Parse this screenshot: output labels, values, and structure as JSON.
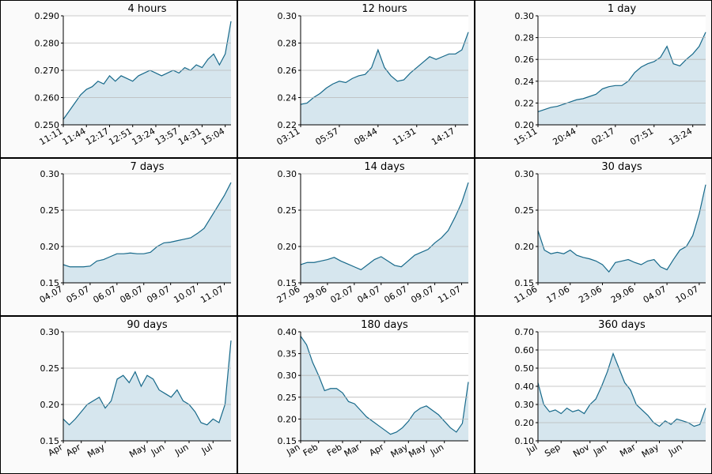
{
  "chart_data": [
    {
      "type": "area",
      "title": "4 hours",
      "color": "#17698a",
      "fill_color": "#d6e6ee",
      "grid": true,
      "categories": [
        "11:11",
        null,
        null,
        null,
        "11:44",
        null,
        null,
        null,
        "12:17",
        null,
        null,
        null,
        "12:51",
        null,
        null,
        null,
        "13:24",
        null,
        null,
        null,
        "13:57",
        null,
        null,
        null,
        "14:31",
        null,
        null,
        null,
        "15:04",
        null
      ],
      "values": [
        0.252,
        0.255,
        0.258,
        0.261,
        0.263,
        0.264,
        0.266,
        0.265,
        0.268,
        0.266,
        0.268,
        0.267,
        0.266,
        0.268,
        0.269,
        0.27,
        0.269,
        0.268,
        0.269,
        0.27,
        0.269,
        0.271,
        0.27,
        0.272,
        0.271,
        0.274,
        0.276,
        0.272,
        0.276,
        0.288
      ],
      "ylim": [
        0.25,
        0.29
      ],
      "yticks": [
        {
          "value": 0.25,
          "label": "0.250"
        },
        {
          "value": 0.26,
          "label": "0.260"
        },
        {
          "value": 0.27,
          "label": "0.270"
        },
        {
          "value": 0.28,
          "label": "0.280"
        },
        {
          "value": 0.29,
          "label": "0.290"
        }
      ]
    },
    {
      "type": "area",
      "title": "12 hours",
      "color": "#17698a",
      "fill_color": "#d6e6ee",
      "grid": true,
      "categories": [
        "03:11",
        null,
        null,
        null,
        null,
        null,
        "05:57",
        null,
        null,
        null,
        null,
        null,
        "08:44",
        null,
        null,
        null,
        null,
        null,
        "11:31",
        null,
        null,
        null,
        null,
        null,
        "14:17",
        null,
        null
      ],
      "values": [
        0.235,
        0.236,
        0.24,
        0.243,
        0.247,
        0.25,
        0.252,
        0.251,
        0.254,
        0.256,
        0.257,
        0.262,
        0.275,
        0.262,
        0.256,
        0.252,
        0.253,
        0.258,
        0.262,
        0.266,
        0.27,
        0.268,
        0.27,
        0.272,
        0.272,
        0.275,
        0.288
      ],
      "ylim": [
        0.22,
        0.3
      ],
      "yticks": [
        0.22,
        0.24,
        0.26,
        0.28,
        {
          "value": 0.3,
          "label": "0.30"
        }
      ]
    },
    {
      "type": "area",
      "title": "1 day",
      "color": "#17698a",
      "fill_color": "#d6e6ee",
      "grid": true,
      "categories": [
        "15:11",
        null,
        null,
        null,
        null,
        null,
        "20:44",
        null,
        null,
        null,
        null,
        null,
        "02:17",
        null,
        null,
        null,
        null,
        null,
        "07:51",
        null,
        null,
        null,
        null,
        null,
        "13:24",
        null,
        null
      ],
      "values": [
        0.212,
        0.214,
        0.216,
        0.217,
        0.219,
        0.221,
        0.223,
        0.224,
        0.226,
        0.228,
        0.233,
        0.235,
        0.236,
        0.236,
        0.24,
        0.248,
        0.253,
        0.256,
        0.258,
        0.262,
        0.272,
        0.256,
        0.254,
        0.26,
        0.265,
        0.272,
        0.285
      ],
      "ylim": [
        0.2,
        0.3
      ],
      "yticks": [
        {
          "value": 0.2,
          "label": "0.20"
        },
        0.22,
        0.24,
        0.26,
        0.28,
        {
          "value": 0.3,
          "label": "0.30"
        }
      ]
    },
    {
      "type": "area",
      "title": "7 days",
      "color": "#17698a",
      "fill_color": "#d6e6ee",
      "grid": true,
      "categories": [
        "04.07",
        null,
        null,
        null,
        "05.07",
        null,
        null,
        null,
        "06.07",
        null,
        null,
        null,
        "08.07",
        null,
        null,
        null,
        "09.07",
        null,
        null,
        null,
        "10.07",
        null,
        null,
        null,
        "11.07",
        null
      ],
      "values": [
        0.175,
        0.172,
        0.172,
        0.172,
        0.173,
        0.18,
        0.182,
        0.186,
        0.19,
        0.19,
        0.191,
        0.19,
        0.19,
        0.192,
        0.2,
        0.205,
        0.206,
        0.208,
        0.21,
        0.212,
        0.218,
        0.225,
        0.24,
        0.255,
        0.27,
        0.288
      ],
      "ylim": [
        0.15,
        0.3
      ],
      "yticks": [
        0.15,
        {
          "value": 0.2,
          "label": "0.20"
        },
        0.25,
        {
          "value": 0.3,
          "label": "0.30"
        }
      ]
    },
    {
      "type": "area",
      "title": "14 days",
      "color": "#17698a",
      "fill_color": "#d6e6ee",
      "grid": true,
      "categories": [
        "27.06",
        null,
        null,
        null,
        "29.06",
        null,
        null,
        null,
        "02.07",
        null,
        null,
        null,
        "04.07",
        null,
        null,
        null,
        "06.07",
        null,
        null,
        null,
        "09.07",
        null,
        null,
        null,
        "11.07",
        null
      ],
      "values": [
        0.175,
        0.178,
        0.178,
        0.18,
        0.182,
        0.185,
        0.18,
        0.176,
        0.172,
        0.168,
        0.175,
        0.182,
        0.186,
        0.18,
        0.174,
        0.172,
        0.18,
        0.188,
        0.192,
        0.196,
        0.205,
        0.212,
        0.222,
        0.24,
        0.26,
        0.288
      ],
      "ylim": [
        0.15,
        0.3
      ],
      "yticks": [
        0.15,
        {
          "value": 0.2,
          "label": "0.20"
        },
        0.25,
        {
          "value": 0.3,
          "label": "0.30"
        }
      ]
    },
    {
      "type": "area",
      "title": "30 days",
      "color": "#17698a",
      "fill_color": "#d6e6ee",
      "grid": true,
      "categories": [
        "11.06",
        null,
        null,
        null,
        null,
        "17.06",
        null,
        null,
        null,
        null,
        "23.06",
        null,
        null,
        null,
        null,
        "29.06",
        null,
        null,
        null,
        null,
        "04.07",
        null,
        null,
        null,
        null,
        "10.07",
        null
      ],
      "values": [
        0.222,
        0.195,
        0.19,
        0.192,
        0.19,
        0.195,
        0.188,
        0.185,
        0.183,
        0.18,
        0.175,
        0.165,
        0.178,
        0.18,
        0.182,
        0.178,
        0.175,
        0.18,
        0.182,
        0.172,
        0.168,
        0.182,
        0.195,
        0.2,
        0.215,
        0.245,
        0.285
      ],
      "ylim": [
        0.15,
        0.3
      ],
      "yticks": [
        0.15,
        {
          "value": 0.2,
          "label": "0.20"
        },
        0.25,
        {
          "value": 0.3,
          "label": "0.30"
        }
      ]
    },
    {
      "type": "area",
      "title": "90 days",
      "color": "#17698a",
      "fill_color": "#d6e6ee",
      "grid": true,
      "categories": [
        "Apr",
        null,
        null,
        "Apr",
        null,
        null,
        null,
        "May",
        null,
        null,
        null,
        null,
        null,
        null,
        "May",
        null,
        null,
        "Jun",
        null,
        null,
        null,
        "Jun",
        null,
        null,
        null,
        "Jul",
        null,
        null,
        null
      ],
      "values": [
        0.18,
        0.172,
        0.18,
        0.19,
        0.2,
        0.205,
        0.21,
        0.195,
        0.205,
        0.235,
        0.24,
        0.23,
        0.245,
        0.225,
        0.24,
        0.235,
        0.22,
        0.215,
        0.21,
        0.22,
        0.205,
        0.2,
        0.19,
        0.175,
        0.172,
        0.18,
        0.175,
        0.2,
        0.288
      ],
      "ylim": [
        0.15,
        0.3
      ],
      "yticks": [
        0.15,
        {
          "value": 0.2,
          "label": "0.20"
        },
        0.25,
        {
          "value": 0.3,
          "label": "0.30"
        }
      ]
    },
    {
      "type": "area",
      "title": "180 days",
      "color": "#17698a",
      "fill_color": "#d6e6ee",
      "grid": true,
      "categories": [
        "Jan",
        null,
        null,
        "Feb",
        null,
        null,
        null,
        "Feb",
        null,
        null,
        "Mar",
        null,
        null,
        null,
        "Apr",
        null,
        null,
        null,
        "May",
        null,
        null,
        "May",
        null,
        null,
        "Jun",
        null,
        null,
        null,
        null
      ],
      "values": [
        0.39,
        0.37,
        0.33,
        0.3,
        0.265,
        0.27,
        0.27,
        0.26,
        0.24,
        0.235,
        0.22,
        0.205,
        0.195,
        0.185,
        0.175,
        0.165,
        0.17,
        0.18,
        0.195,
        0.215,
        0.225,
        0.23,
        0.22,
        0.21,
        0.195,
        0.18,
        0.17,
        0.19,
        0.285
      ],
      "ylim": [
        0.15,
        0.4
      ],
      "yticks": [
        0.15,
        {
          "value": 0.2,
          "label": "0.20"
        },
        0.25,
        {
          "value": 0.3,
          "label": "0.30"
        },
        0.35,
        {
          "value": 0.4,
          "label": "0.40"
        }
      ]
    },
    {
      "type": "area",
      "title": "360 days",
      "color": "#17698a",
      "fill_color": "#d6e6ee",
      "grid": true,
      "categories": [
        "Jul",
        null,
        null,
        null,
        "Sep",
        null,
        null,
        null,
        null,
        "Nov",
        null,
        null,
        "Jan",
        null,
        null,
        null,
        null,
        "Mar",
        null,
        null,
        null,
        "May",
        null,
        null,
        null,
        "Jun",
        null,
        null,
        null,
        null
      ],
      "values": [
        0.42,
        0.3,
        0.26,
        0.27,
        0.25,
        0.28,
        0.26,
        0.27,
        0.25,
        0.3,
        0.33,
        0.4,
        0.48,
        0.58,
        0.5,
        0.42,
        0.38,
        0.3,
        0.27,
        0.24,
        0.2,
        0.18,
        0.21,
        0.19,
        0.22,
        0.21,
        0.2,
        0.18,
        0.19,
        0.28
      ],
      "ylim": [
        0.1,
        0.7
      ],
      "yticks": [
        {
          "value": 0.1,
          "label": "0.10"
        },
        {
          "value": 0.2,
          "label": "0.20"
        },
        {
          "value": 0.3,
          "label": "0.30"
        },
        {
          "value": 0.4,
          "label": "0.40"
        },
        {
          "value": 0.5,
          "label": "0.50"
        },
        {
          "value": 0.6,
          "label": "0.60"
        },
        {
          "value": 0.7,
          "label": "0.70"
        }
      ]
    }
  ]
}
